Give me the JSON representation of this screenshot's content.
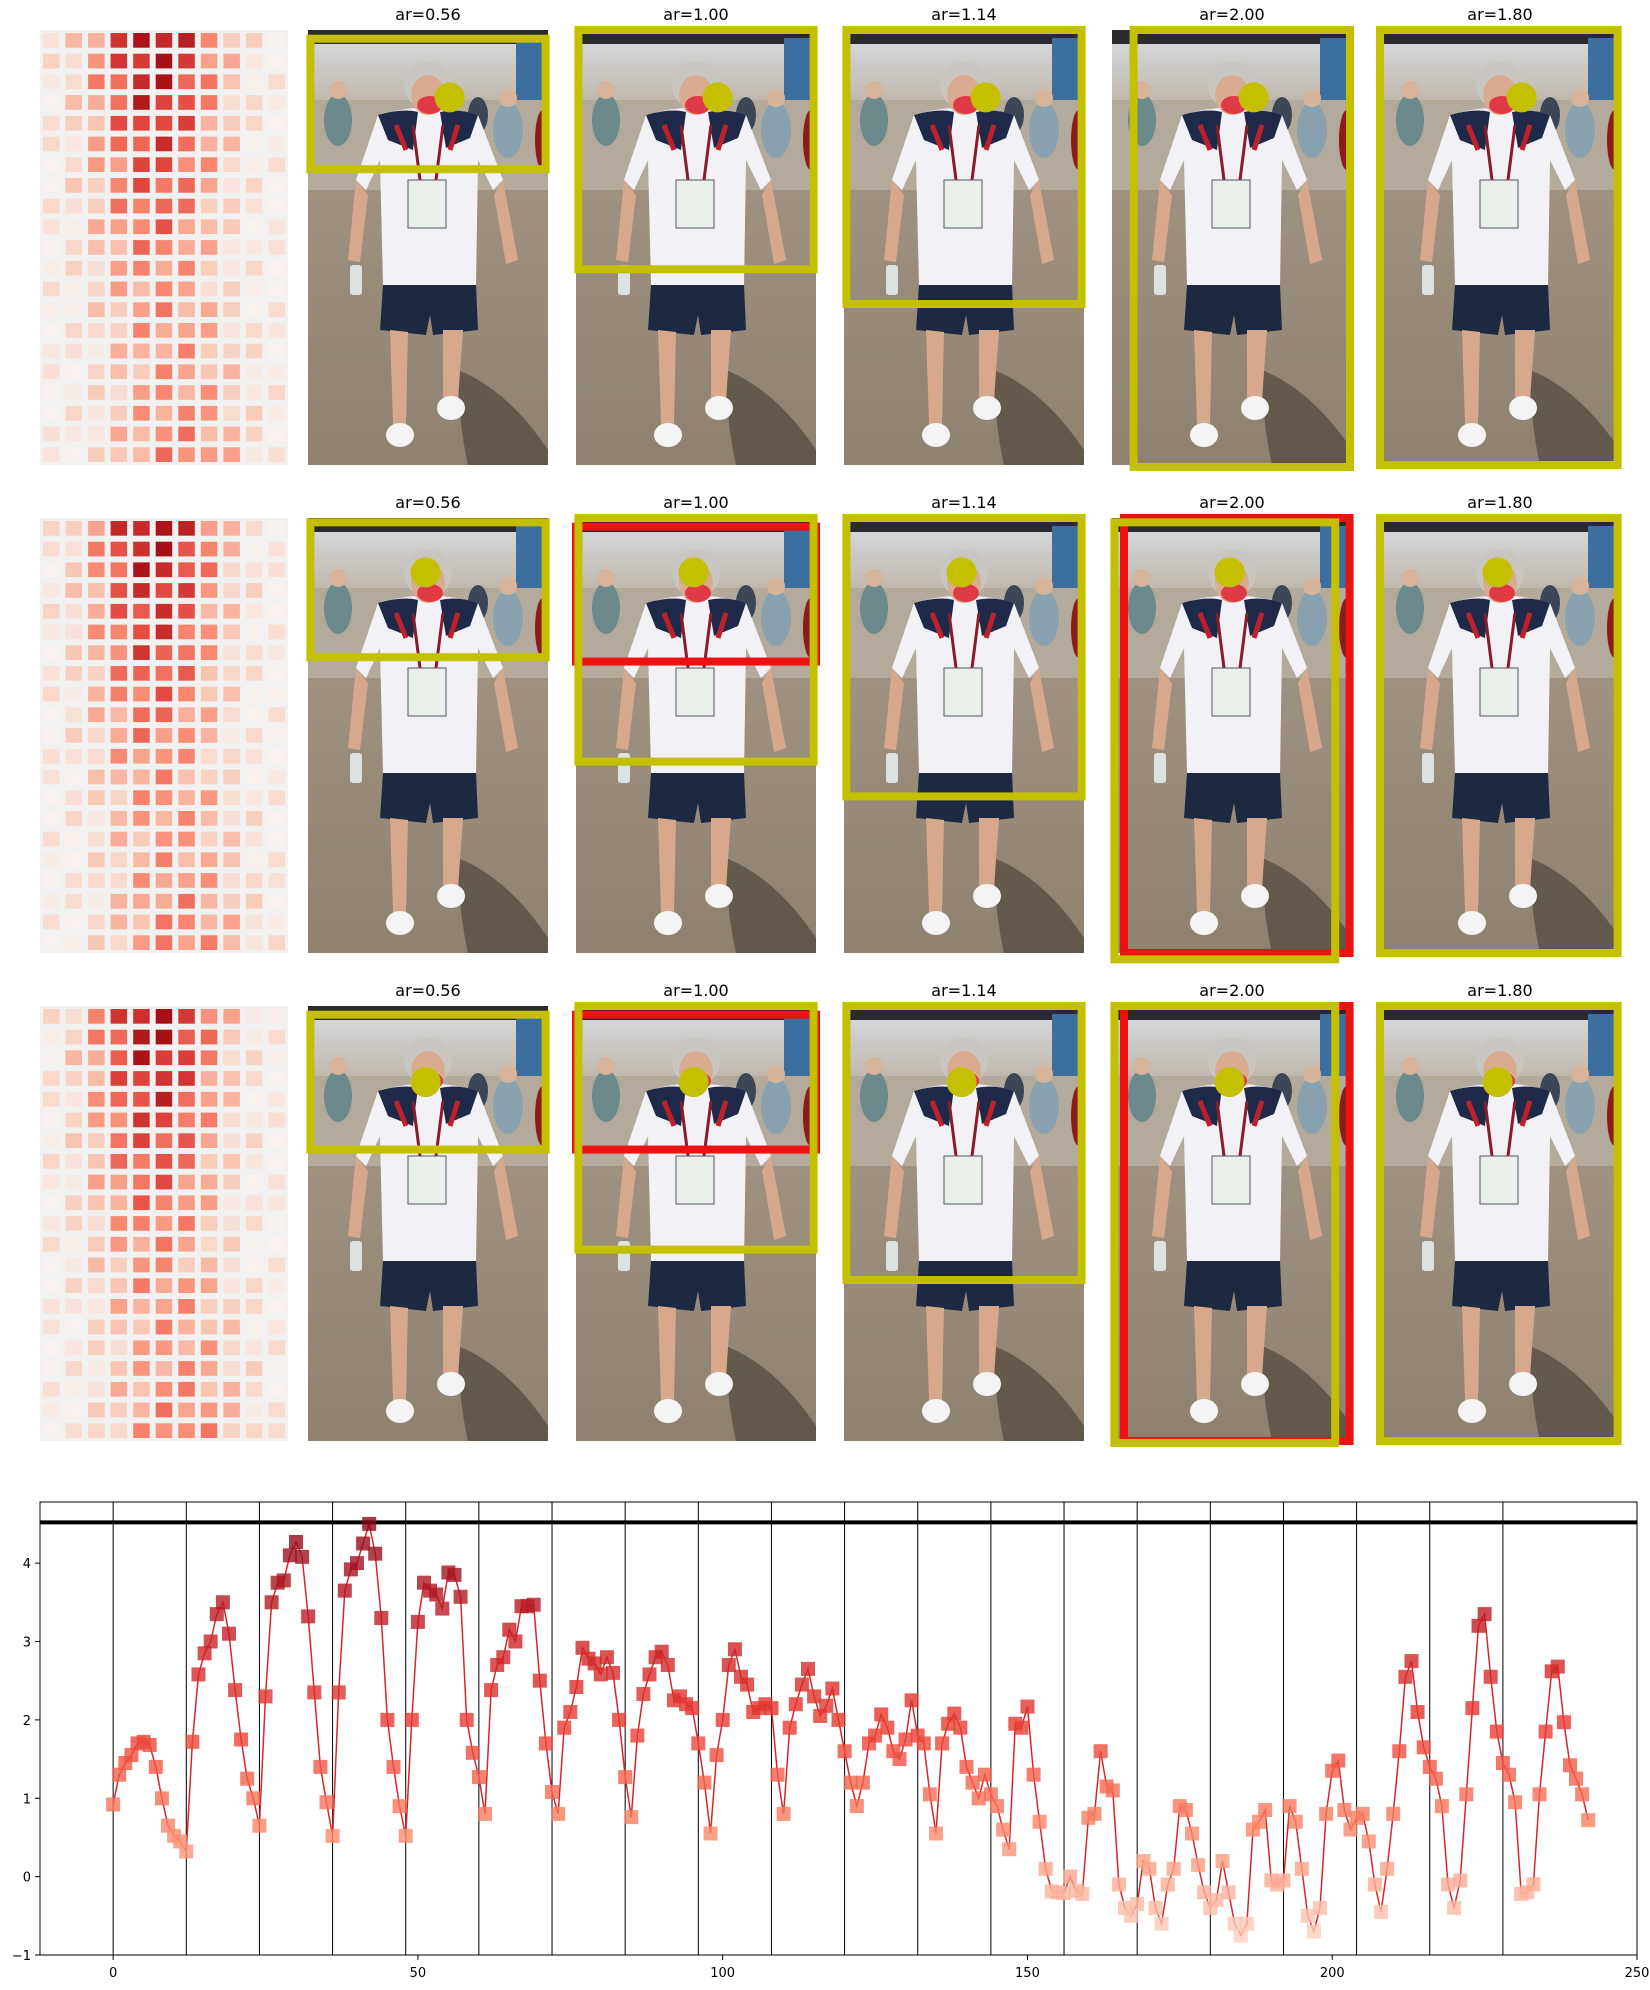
{
  "rows": [
    {
      "titles": [
        "ar=0.56",
        "ar=1.00",
        "ar=1.14",
        "ar=2.00",
        "ar=1.80"
      ]
    },
    {
      "titles": [
        "ar=0.56",
        "ar=1.00",
        "ar=1.14",
        "ar=2.00",
        "ar=1.80"
      ]
    },
    {
      "titles": [
        "ar=0.56",
        "ar=1.00",
        "ar=1.14",
        "ar=2.00",
        "ar=1.80"
      ]
    }
  ],
  "colors": {
    "box": "#c4c000",
    "alt_box": "#ee1111",
    "marker_dark": "#8b0a1a",
    "marker_light": "#fbd0c0",
    "line": "#d62728",
    "hline": "#000000"
  },
  "chart_data": {
    "type": "line",
    "x_start": 0,
    "values": [
      0.92,
      1.3,
      1.45,
      1.55,
      1.7,
      1.72,
      1.68,
      1.4,
      1.0,
      0.65,
      0.52,
      0.45,
      0.32,
      1.72,
      2.58,
      2.85,
      3.0,
      3.35,
      3.5,
      3.1,
      2.38,
      1.75,
      1.25,
      1.0,
      0.65,
      2.3,
      3.5,
      3.75,
      3.78,
      4.1,
      4.27,
      4.08,
      3.32,
      2.35,
      1.4,
      0.95,
      0.52,
      2.35,
      3.65,
      3.92,
      4.0,
      4.25,
      4.5,
      4.12,
      3.3,
      2.0,
      1.4,
      0.9,
      0.52,
      2.0,
      3.25,
      3.75,
      3.65,
      3.6,
      3.42,
      3.88,
      3.85,
      3.57,
      2.0,
      1.58,
      1.27,
      0.8,
      2.38,
      2.7,
      2.8,
      3.15,
      3.0,
      3.45,
      3.45,
      3.47,
      2.5,
      1.7,
      1.08,
      0.8,
      1.9,
      2.1,
      2.42,
      2.92,
      2.78,
      2.72,
      2.58,
      2.8,
      2.6,
      2.0,
      1.27,
      0.76,
      1.8,
      2.33,
      2.58,
      2.8,
      2.87,
      2.7,
      2.25,
      2.3,
      2.2,
      2.15,
      1.7,
      1.2,
      0.55,
      1.55,
      2.0,
      2.7,
      2.9,
      2.55,
      2.45,
      2.1,
      2.15,
      2.2,
      2.15,
      1.3,
      0.8,
      1.9,
      2.2,
      2.45,
      2.65,
      2.3,
      2.05,
      2.18,
      2.4,
      2.0,
      1.6,
      1.2,
      0.9,
      1.2,
      1.7,
      1.8,
      2.07,
      1.9,
      1.6,
      1.5,
      1.75,
      2.25,
      1.8,
      1.7,
      1.05,
      0.55,
      1.7,
      1.95,
      2.08,
      1.9,
      1.4,
      1.2,
      1.0,
      1.3,
      1.05,
      0.9,
      0.6,
      0.35,
      1.95,
      1.9,
      2.17,
      1.3,
      0.7,
      0.1,
      -0.19,
      -0.2,
      -0.21,
      0.0,
      -0.18,
      -0.22,
      0.75,
      0.8,
      1.6,
      1.15,
      1.1,
      -0.1,
      -0.4,
      -0.5,
      -0.35,
      0.2,
      0.1,
      -0.4,
      -0.6,
      -0.1,
      0.1,
      0.9,
      0.85,
      0.55,
      0.15,
      -0.2,
      -0.4,
      -0.3,
      0.2,
      -0.2,
      -0.6,
      -0.75,
      -0.6,
      0.6,
      0.7,
      0.85,
      -0.05,
      -0.1,
      -0.05,
      0.9,
      0.7,
      0.1,
      -0.5,
      -0.7,
      -0.4,
      0.8,
      1.35,
      1.48,
      0.85,
      0.6,
      0.75,
      0.8,
      0.45,
      -0.1,
      -0.45,
      0.1,
      0.8,
      1.6,
      2.55,
      2.75,
      2.1,
      1.65,
      1.4,
      1.25,
      0.9,
      -0.1,
      -0.4,
      -0.05,
      1.05,
      2.15,
      3.2,
      3.35,
      2.55,
      1.85,
      1.45,
      1.3,
      0.95,
      -0.22,
      -0.2,
      -0.1,
      1.05,
      1.85,
      2.62,
      2.68,
      1.97,
      1.42,
      1.25,
      1.05,
      0.72
    ],
    "xlim": [
      -12,
      250
    ],
    "ylim": [
      -1,
      4.78
    ],
    "xticks": [
      0,
      50,
      100,
      150,
      200,
      250
    ],
    "yticks": [
      -1,
      0,
      1,
      2,
      3,
      4
    ],
    "hline": 4.52,
    "vlines": [
      0,
      12,
      24,
      36,
      48,
      60,
      72,
      84,
      96,
      108,
      120,
      132,
      144,
      156,
      168,
      180,
      192,
      204,
      216,
      228
    ],
    "title": "",
    "xlabel": "",
    "ylabel": "",
    "grid": false
  }
}
